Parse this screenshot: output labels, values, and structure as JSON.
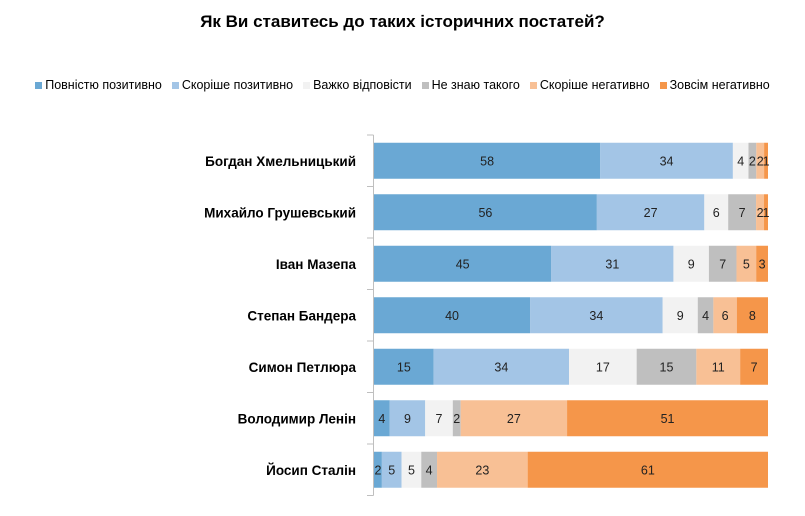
{
  "chart_data": {
    "type": "bar",
    "orientation": "horizontal",
    "stacked": "100%",
    "title": "Як Ви ставитесь до таких історичних постатей?",
    "legend_position": "top",
    "categories": [
      "Богдан Хмельницький",
      "Михайло Грушевський",
      "Іван Мазепа",
      "Степан Бандера",
      "Симон Петлюра",
      "Володимир Ленін",
      "Йосип Сталін"
    ],
    "series": [
      {
        "name": "Повністю позитивно",
        "color": "#6aa8d4",
        "values": [
          58,
          56,
          45,
          40,
          15,
          4,
          2
        ]
      },
      {
        "name": "Скоріше позитивно",
        "color": "#a3c5e6",
        "values": [
          34,
          27,
          31,
          34,
          34,
          9,
          5
        ]
      },
      {
        "name": "Важко відповісти",
        "color": "#f2f2f2",
        "values": [
          4,
          6,
          9,
          9,
          17,
          7,
          5
        ]
      },
      {
        "name": "Не знаю такого",
        "color": "#bfbfbf",
        "values": [
          2,
          7,
          7,
          4,
          15,
          2,
          4
        ]
      },
      {
        "name": "Скоріше негативно",
        "color": "#f8c095",
        "values": [
          2,
          2,
          5,
          6,
          11,
          27,
          23
        ]
      },
      {
        "name": "Зовсім негативно",
        "color": "#f5964a",
        "values": [
          1,
          1,
          3,
          8,
          7,
          51,
          61
        ]
      }
    ],
    "grid": false
  }
}
